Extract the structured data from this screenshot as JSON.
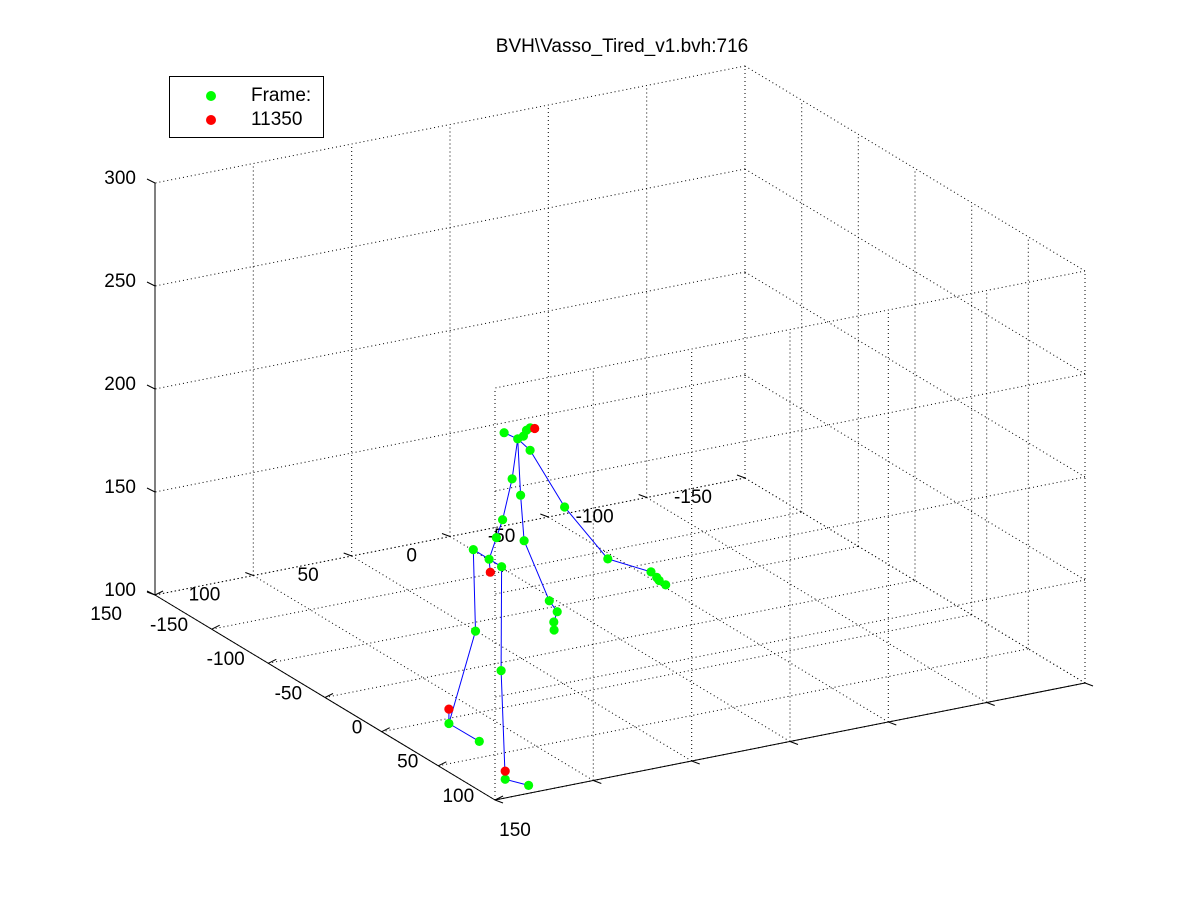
{
  "chart_data": {
    "type": "scatter",
    "title": "BVH\\Vasso_Tired_v1.bvh:716",
    "xlabel": "",
    "ylabel": "",
    "zlabel": "",
    "xlim": [
      -150,
      150
    ],
    "ylim": [
      -150,
      150
    ],
    "zlim": [
      100,
      300
    ],
    "xticks": [
      "-150",
      "-100",
      "-50",
      "0",
      "50",
      "100",
      "150"
    ],
    "yticks": [
      "-150",
      "-100",
      "-50",
      "0",
      "50",
      "100",
      "150"
    ],
    "zticks": [
      "100",
      "150",
      "200",
      "250",
      "300"
    ],
    "grid": true,
    "legend_position": "top-left",
    "legend": [
      {
        "label": "Frame:",
        "color": "#00ff00"
      },
      {
        "label": "11350",
        "color": "#ff0000"
      }
    ],
    "colors": {
      "joints": "#00ff00",
      "end_effectors": "#ff0000",
      "bones": "#0000ff"
    },
    "joints": [
      {
        "name": "hips",
        "x": 6,
        "y": 70,
        "z": 154
      },
      {
        "name": "left-hip",
        "x": -8,
        "y": 70,
        "z": 154
      },
      {
        "name": "left-knee",
        "x": -13,
        "y": 66,
        "z": 112
      },
      {
        "name": "left-ankle",
        "x": -26,
        "y": 72,
        "z": 64
      },
      {
        "name": "left-toe",
        "x": -20,
        "y": 60,
        "z": 55
      },
      {
        "name": "right-hip",
        "x": 17,
        "y": 70,
        "z": 154
      },
      {
        "name": "right-knee",
        "x": 27,
        "y": 76,
        "z": 108
      },
      {
        "name": "right-ankle",
        "x": 41,
        "y": 82,
        "z": 61
      },
      {
        "name": "right-toe",
        "x": 46,
        "y": 73,
        "z": 58
      },
      {
        "name": "spine",
        "x": 2,
        "y": 64,
        "z": 162
      },
      {
        "name": "spine1",
        "x": 4,
        "y": 62,
        "z": 171
      },
      {
        "name": "spine2",
        "x": 2,
        "y": 56,
        "z": 189
      },
      {
        "name": "neck",
        "x": 0,
        "y": 52,
        "z": 207
      },
      {
        "name": "neck1",
        "x": 5,
        "y": 52,
        "z": 210
      },
      {
        "name": "neck2",
        "x": 6,
        "y": 51,
        "z": 213
      },
      {
        "name": "head",
        "x": 11,
        "y": 52,
        "z": 216
      },
      {
        "name": "left-shoulder",
        "x": -12,
        "y": 52,
        "z": 206
      },
      {
        "name": "right-shoulder",
        "x": 4,
        "y": 48,
        "z": 202
      },
      {
        "name": "right-arm",
        "x": 24,
        "y": 42,
        "z": 180
      },
      {
        "name": "right-forearm",
        "x": 43,
        "y": 31,
        "z": 159
      },
      {
        "name": "right-hand",
        "x": 69,
        "y": 24,
        "z": 160
      },
      {
        "name": "right-hand-1",
        "x": 74,
        "y": 24,
        "z": 159
      },
      {
        "name": "right-hand-2",
        "x": 78,
        "y": 25,
        "z": 159
      },
      {
        "name": "right-hand-3",
        "x": 82,
        "y": 24,
        "z": 158
      },
      {
        "name": "left-arm",
        "x": 6,
        "y": 54,
        "z": 182
      },
      {
        "name": "left-forearm",
        "x": 16,
        "y": 58,
        "z": 164
      },
      {
        "name": "left-hand",
        "x": 40,
        "y": 59,
        "z": 143
      },
      {
        "name": "left-hand-1",
        "x": 47,
        "y": 59,
        "z": 140
      },
      {
        "name": "left-hand-2",
        "x": 44,
        "y": 59,
        "z": 134
      },
      {
        "name": "left-hand-3",
        "x": 46,
        "y": 60,
        "z": 131
      }
    ],
    "end_effectors": [
      {
        "name": "head-end",
        "x": 15,
        "y": 52,
        "z": 217
      },
      {
        "name": "hips-marker",
        "x": 7,
        "y": 70,
        "z": 148
      },
      {
        "name": "left-foot-end",
        "x": -26,
        "y": 72,
        "z": 71
      },
      {
        "name": "right-foot-end",
        "x": 41,
        "y": 82,
        "z": 65
      }
    ],
    "bones": [
      [
        "hips",
        "left-hip"
      ],
      [
        "left-hip",
        "left-knee"
      ],
      [
        "left-knee",
        "left-ankle"
      ],
      [
        "left-ankle",
        "left-toe"
      ],
      [
        "hips",
        "right-hip"
      ],
      [
        "right-hip",
        "right-knee"
      ],
      [
        "right-knee",
        "right-ankle"
      ],
      [
        "right-ankle",
        "right-toe"
      ],
      [
        "hips",
        "spine"
      ],
      [
        "spine",
        "spine1"
      ],
      [
        "spine1",
        "spine2"
      ],
      [
        "spine2",
        "neck"
      ],
      [
        "neck",
        "neck1"
      ],
      [
        "neck1",
        "neck2"
      ],
      [
        "neck2",
        "head"
      ],
      [
        "neck",
        "left-shoulder"
      ],
      [
        "neck",
        "right-shoulder"
      ],
      [
        "right-shoulder",
        "right-arm"
      ],
      [
        "right-arm",
        "right-forearm"
      ],
      [
        "right-forearm",
        "right-hand"
      ],
      [
        "right-hand",
        "right-hand-1"
      ],
      [
        "right-hand-1",
        "right-hand-2"
      ],
      [
        "right-hand-2",
        "right-hand-3"
      ],
      [
        "neck",
        "left-arm"
      ],
      [
        "left-arm",
        "left-forearm"
      ],
      [
        "left-forearm",
        "left-hand"
      ],
      [
        "left-hand",
        "left-hand-1"
      ],
      [
        "left-hand-1",
        "left-hand-2"
      ],
      [
        "left-hand-2",
        "left-hand-3"
      ],
      [
        "hips",
        "hips-marker"
      ],
      [
        "left-ankle",
        "left-foot-end"
      ],
      [
        "right-ankle",
        "right-foot-end"
      ]
    ]
  }
}
